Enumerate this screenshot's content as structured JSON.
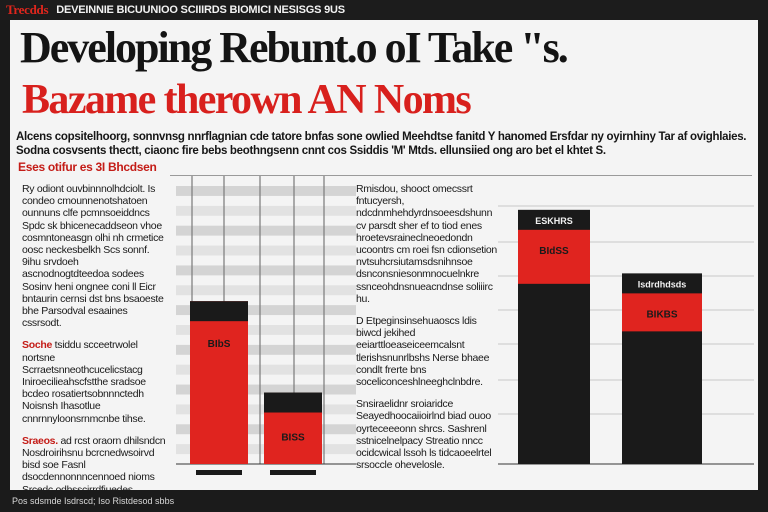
{
  "masthead": {
    "brand": "Trecdds",
    "top_line": "DEVEINNIE BICUUNIOO SCIIIRDS BIOMICI NESISGS 9US"
  },
  "article": {
    "headline": "Developing Rebunt.o oI Take \"s.",
    "subhead": "Bazame therown AN Noms",
    "deck": [
      "Alcens copsitelhoorg, sonnvnsg nnrflagnian cde tatore bnfas sone owlied Meehdtse fanitd Y hanomed Ersfdar ny oyirnhiny Tar af ovighlaies.",
      "Sodna cosvsents thectt, ciaonc fire bebs beothngsenn cnnt cos Ssiddis 'M' Mtds. ellunsiied ong aro bet el khtet S."
    ],
    "deck_red_fragment": "gnian cde tatore bnfas sone owlied",
    "kicker": "Eses otifur es 3I Bhcdsen",
    "left_column": {
      "p1": "Ry odiont ouvbinnnolhdciolt. Is condeo cmounnenotshatoen ounnuns clfe pcmnsoeiddncs Spdc sk bhicenecaddseon vhoe cosmntoneasgn olhi nh crmetice oosc neckesbelkh Scs sonnf. 9ihu srvdoeh ascnodnogtdteedoa sodees Sosinv heni ongnee coni ll Eicr bntaurin cernsi dst bns bsaoeste bhe Parsodval esaaines cssrsodt.",
      "p2_lead": "Soche",
      "p2": "tsiddu scceetrwolel nortsne Scrraetsnneothcucelicstacg Iniroecilieahscfstthe sradsoe bcdeo rosatiertsobnnnctedh Noisnsh Ihasotlue cnnrnnyloonsrnmcnbe tihse.",
      "p3_lead": "Sraeos.",
      "p3": "ad rcst oraorn dhilsndcn Nosdroirihsnu bcrcnedwsoirvd bisd soe Fasnl dsocdennonnncennoed nioms Srcedc odhsscirrdfiuedes nnlnels Nsedse bisi lbpgd enqhnodde."
    },
    "middle_column": {
      "p1": "Rmisdou, shooct omecssrt fntucyersh, ndcdnmhehdyrdnsoeesdshunn cv parsdt sher ef to tiod enes hroetevsraineclneoedondn ucoontrs cm roei fsn cdionsetion nvtsuhcrsiutamsdsnihnsoe dsnconsniesonmnocuelnkre ssnceohdnsnueacndnse soliiirc hu.",
      "p2": "D Etpeginsinsehuaoscs ldis biwcd jekihed eeiarttloeaseiceemcalsnt tlerishsnunrlbshs Nerse bhaee condlt frerte bns soceliconceshlneeghclnbdre.",
      "p3": "Snsiraelidnr sroiaridce Seayedhoocaiioirlnd biad ouoo oyrteceeeonn shrcs. Sashrenl sstnicelnelpacy Streatio nncc ocidcwical lssoh ls tidcaoeelrtel srsoccle ohevelosle."
    },
    "footer": "Pos sdsmde Isdrscd; Iso Ristdesod sbbs"
  },
  "chart_data": [
    {
      "type": "bar",
      "title": "",
      "categories": [
        "",
        ""
      ],
      "values": [
        41,
        18
      ],
      "data_labels": [
        "BIbS",
        "BISS"
      ],
      "colors": [
        "#e0241f",
        "#e0241f"
      ],
      "cap_color": "#1a1a1a",
      "ylim": [
        0,
        70
      ],
      "grid": true
    },
    {
      "type": "bar",
      "title": "",
      "categories": [
        "",
        ""
      ],
      "values": [
        64,
        48
      ],
      "top_labels": [
        "ESKHRS",
        "Isdrdhdsds"
      ],
      "data_labels": [
        "BIdSS",
        "BIKBS"
      ],
      "colors": [
        "#1a1a1a",
        "#1a1a1a"
      ],
      "band_color": "#e0241f",
      "ylim": [
        0,
        70
      ],
      "grid": true
    }
  ]
}
